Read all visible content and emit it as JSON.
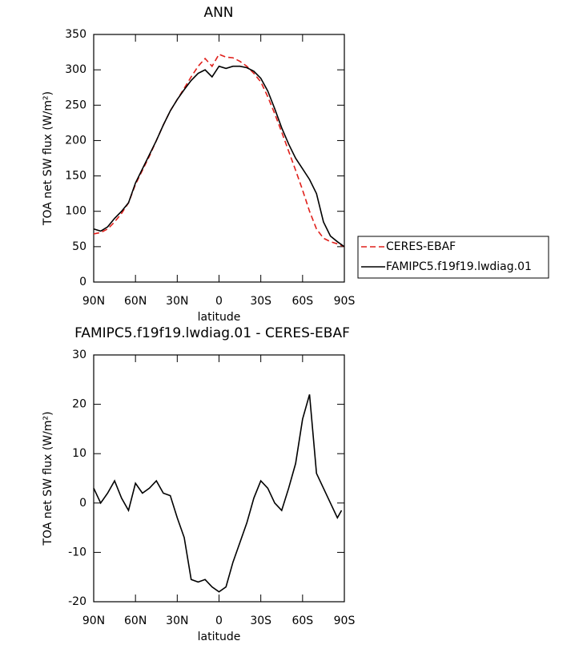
{
  "chart_data": [
    {
      "type": "line",
      "title": "ANN",
      "x_label": "latitude",
      "y_label": "TOA net SW flux (W/m²)",
      "x": [
        90,
        85,
        80,
        75,
        70,
        65,
        60,
        55,
        50,
        45,
        40,
        35,
        30,
        25,
        20,
        15,
        10,
        5,
        0,
        -5,
        -10,
        -15,
        -20,
        -25,
        -30,
        -35,
        -40,
        -45,
        -50,
        -55,
        -60,
        -65,
        -70,
        -75,
        -80,
        -85,
        -90
      ],
      "series": [
        {
          "name": "CERES-EBAF",
          "color": "#e0201b",
          "line_style": "dashed",
          "values": [
            68,
            70,
            75,
            85,
            97,
            112,
            138,
            158,
            178,
            200,
            222,
            242,
            258,
            274,
            290,
            305,
            316,
            305,
            322,
            318,
            317,
            312,
            305,
            295,
            283,
            262,
            238,
            212,
            185,
            158,
            130,
            100,
            75,
            62,
            57,
            54,
            50
          ]
        },
        {
          "name": "FAMIPC5.f19f19.lwdiag.01",
          "color": "#000000",
          "line_style": "solid",
          "values": [
            75,
            72,
            78,
            90,
            100,
            112,
            140,
            160,
            180,
            200,
            222,
            242,
            258,
            272,
            285,
            295,
            300,
            290,
            305,
            302,
            305,
            305,
            303,
            298,
            288,
            270,
            245,
            218,
            195,
            175,
            160,
            145,
            125,
            85,
            65,
            57,
            50
          ]
        }
      ],
      "xlim": [
        90,
        -90
      ],
      "xticks": [
        {
          "value": 90,
          "label": "90N"
        },
        {
          "value": 60,
          "label": "60N"
        },
        {
          "value": 30,
          "label": "30N"
        },
        0,
        {
          "value": -30,
          "label": "30S"
        },
        {
          "value": -60,
          "label": "60S"
        },
        {
          "value": -90,
          "label": "90S"
        }
      ],
      "ylim": [
        0,
        350
      ],
      "yticks": [
        0,
        50,
        100,
        150,
        200,
        250,
        300,
        350
      ],
      "legend": "right"
    },
    {
      "type": "line",
      "title": "FAMIPC5.f19f19.lwdiag.01 - CERES-EBAF",
      "x_label": "latitude",
      "y_label": "TOA net SW flux (W/m²)",
      "x": [
        90,
        85,
        80,
        75,
        70,
        65,
        60,
        55,
        50,
        45,
        40,
        35,
        30,
        25,
        20,
        15,
        10,
        5,
        0,
        -5,
        -10,
        -15,
        -20,
        -25,
        -30,
        -35,
        -40,
        -45,
        -50,
        -55,
        -60,
        -65,
        -70,
        -75,
        -80,
        -85,
        -88
      ],
      "series": [
        {
          "color": "#000000",
          "line_style": "solid",
          "values": [
            3,
            0,
            2,
            4.5,
            1,
            -1.5,
            4,
            2,
            3,
            4.5,
            2,
            1.5,
            -3,
            -7,
            -15.5,
            -16,
            -15.5,
            -17,
            -18,
            -17,
            -12,
            -8,
            -4,
            1,
            4.5,
            3,
            0,
            -1.5,
            3,
            8,
            17,
            22,
            6,
            3,
            0,
            -3,
            -1.5
          ]
        }
      ],
      "xlim": [
        90,
        -90
      ],
      "xticks": [
        {
          "value": 90,
          "label": "90N"
        },
        {
          "value": 60,
          "label": "60N"
        },
        {
          "value": 30,
          "label": "30N"
        },
        0,
        {
          "value": -30,
          "label": "30S"
        },
        {
          "value": -60,
          "label": "60S"
        },
        {
          "value": -90,
          "label": "90S"
        }
      ],
      "ylim": [
        -20,
        30
      ],
      "yticks": [
        -20,
        -10,
        0,
        10,
        20,
        30
      ]
    }
  ]
}
